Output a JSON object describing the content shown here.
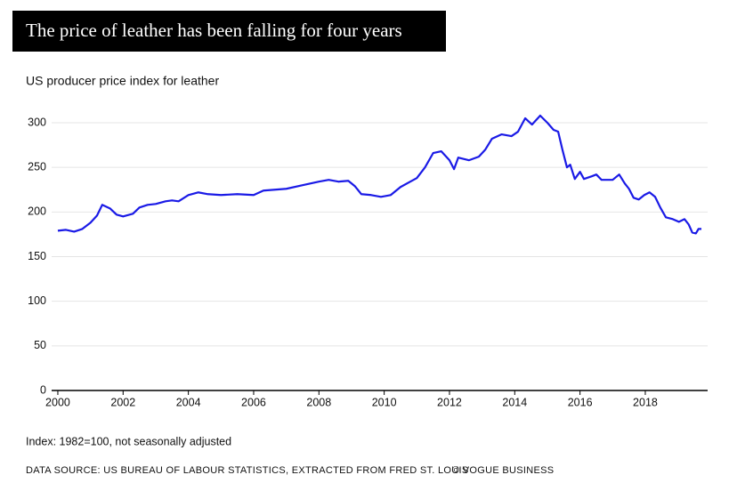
{
  "chart_data": {
    "type": "line",
    "title": "The price of leather has been falling for four years",
    "subtitle": "US producer price index for leather",
    "note": "Index: 1982=100, not seasonally adjusted",
    "source": "DATA SOURCE: US BUREAU OF LABOUR STATISTICS, EXTRACTED FROM FRED ST. LOUIS",
    "credit": "© VOGUE BUSINESS",
    "x": [
      2000,
      2000.25,
      2000.5,
      2000.75,
      2001,
      2001.2,
      2001.36,
      2001.6,
      2001.8,
      2002,
      2002.3,
      2002.5,
      2002.75,
      2003,
      2003.3,
      2003.5,
      2003.7,
      2004,
      2004.3,
      2004.6,
      2005,
      2005.5,
      2006,
      2006.3,
      2007,
      2007.5,
      2008,
      2008.3,
      2008.6,
      2008.9,
      2009.1,
      2009.3,
      2009.6,
      2009.9,
      2010.2,
      2010.5,
      2010.8,
      2011,
      2011.25,
      2011.5,
      2011.75,
      2012,
      2012.14,
      2012.27,
      2012.6,
      2012.9,
      2013.1,
      2013.3,
      2013.6,
      2013.9,
      2014.1,
      2014.32,
      2014.53,
      2014.78,
      2015,
      2015.19,
      2015.33,
      2015.46,
      2015.6,
      2015.7,
      2015.84,
      2016,
      2016.12,
      2016.36,
      2016.5,
      2016.66,
      2017,
      2017.2,
      2017.37,
      2017.5,
      2017.64,
      2017.8,
      2017.97,
      2018.13,
      2018.3,
      2018.46,
      2018.63,
      2018.84,
      2019.03,
      2019.2,
      2019.33,
      2019.44,
      2019.55,
      2019.63,
      2019.72
    ],
    "series": [
      {
        "color": "#1a1ae6",
        "values": [
          179,
          180,
          178,
          181,
          188,
          196,
          208,
          204,
          197,
          195,
          198,
          205,
          208,
          209,
          212,
          213,
          212,
          219,
          222,
          220,
          219,
          220,
          219,
          224,
          226,
          230,
          234,
          236,
          234,
          235,
          229,
          220,
          219,
          217,
          219,
          228,
          234,
          238,
          250,
          266,
          268,
          258,
          248,
          261,
          258,
          262,
          270,
          282,
          287,
          285,
          290,
          305,
          298,
          308,
          300,
          292,
          290,
          270,
          250,
          253,
          237,
          245,
          237,
          240,
          242,
          236,
          236,
          242,
          232,
          226,
          216,
          214,
          219,
          222,
          217,
          205,
          194,
          192,
          189,
          192,
          186,
          177,
          176,
          181,
          181
        ]
      }
    ],
    "xlim": [
      1999.81,
      2019.91
    ],
    "xticks": [
      2000,
      2002,
      2004,
      2006,
      2008,
      2010,
      2012,
      2014,
      2016,
      2018
    ],
    "ylim": [
      0,
      300
    ],
    "yticks": [
      0,
      50,
      100,
      150,
      200,
      250,
      300
    ],
    "grid": true
  }
}
